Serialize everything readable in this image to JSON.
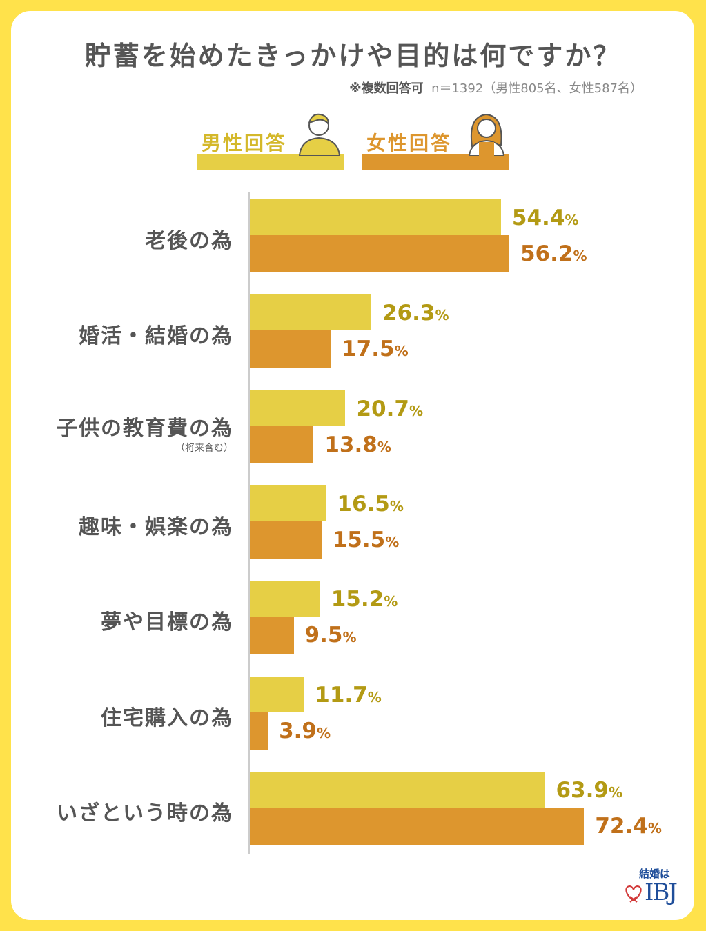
{
  "chart_data": {
    "type": "bar",
    "orientation": "horizontal",
    "title": "貯蓄を始めたきっかけや目的は何ですか？",
    "subtitle_note": "※複数回答可",
    "subtitle_n": "n＝1392（男性805名、女性587名）",
    "categories": [
      "老後の為",
      "婚活・結婚の為",
      "子供の教育費の為",
      "趣味・娯楽の為",
      "夢や目標の為",
      "住宅購入の為",
      "いざという時の為"
    ],
    "category_subnotes": {
      "2": "（将来含む）"
    },
    "series": [
      {
        "name": "男性回答",
        "color": "#E6CF45",
        "label_color": "#B39A14",
        "values": [
          54.4,
          26.3,
          20.7,
          16.5,
          15.2,
          11.7,
          63.9
        ]
      },
      {
        "name": "女性回答",
        "color": "#DD962E",
        "label_color": "#C0701A",
        "values": [
          56.2,
          17.5,
          13.8,
          15.5,
          9.5,
          3.9,
          72.4
        ]
      }
    ],
    "unit": "%",
    "xlim": [
      0,
      100
    ],
    "grid": false,
    "legend": "top"
  },
  "logo": {
    "text": "結婚は",
    "brand": "IBJ"
  }
}
